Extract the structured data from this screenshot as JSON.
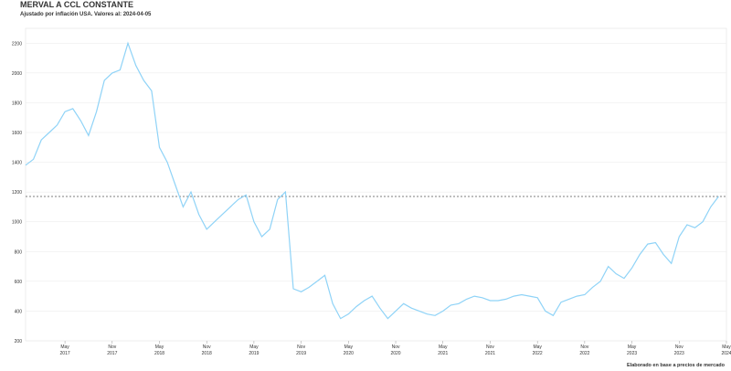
{
  "chart_data": {
    "type": "line",
    "title": "MERVAL A CCL CONSTANTE",
    "subtitle": "Ajustado por inflación USA. Valores al: 2024-04-05",
    "annotation": "Elaborado en base a precios de mercado",
    "color": "#8fd3f7",
    "reference_line": 1170,
    "x": [
      "2016-12",
      "2017-01",
      "2017-02",
      "2017-03",
      "2017-04",
      "2017-05",
      "2017-06",
      "2017-07",
      "2017-08",
      "2017-09",
      "2017-10",
      "2017-11",
      "2017-12",
      "2018-01",
      "2018-02",
      "2018-03",
      "2018-04",
      "2018-05",
      "2018-06",
      "2018-07",
      "2018-08",
      "2018-09",
      "2018-10",
      "2018-11",
      "2018-12",
      "2019-01",
      "2019-02",
      "2019-03",
      "2019-04",
      "2019-05",
      "2019-06",
      "2019-07",
      "2019-08",
      "2019-09",
      "2019-10",
      "2019-11",
      "2019-12",
      "2020-01",
      "2020-02",
      "2020-03",
      "2020-04",
      "2020-05",
      "2020-06",
      "2020-07",
      "2020-08",
      "2020-09",
      "2020-10",
      "2020-11",
      "2020-12",
      "2021-01",
      "2021-02",
      "2021-03",
      "2021-04",
      "2021-05",
      "2021-06",
      "2021-07",
      "2021-08",
      "2021-09",
      "2021-10",
      "2021-11",
      "2021-12",
      "2022-01",
      "2022-02",
      "2022-03",
      "2022-04",
      "2022-05",
      "2022-06",
      "2022-07",
      "2022-08",
      "2022-09",
      "2022-10",
      "2022-11",
      "2022-12",
      "2023-01",
      "2023-02",
      "2023-03",
      "2023-04",
      "2023-05",
      "2023-06",
      "2023-07",
      "2023-08",
      "2023-09",
      "2023-10",
      "2023-11",
      "2023-12",
      "2024-01",
      "2024-02",
      "2024-03",
      "2024-04"
    ],
    "values": [
      1380,
      1420,
      1550,
      1600,
      1650,
      1740,
      1760,
      1680,
      1580,
      1740,
      1950,
      2000,
      2020,
      2200,
      2050,
      1950,
      1880,
      1500,
      1400,
      1250,
      1100,
      1200,
      1050,
      950,
      1000,
      1050,
      1100,
      1150,
      1180,
      1000,
      900,
      950,
      1150,
      1200,
      550,
      530,
      560,
      600,
      640,
      450,
      350,
      380,
      430,
      470,
      500,
      420,
      350,
      400,
      450,
      420,
      400,
      380,
      370,
      400,
      440,
      450,
      480,
      500,
      490,
      470,
      470,
      480,
      500,
      510,
      500,
      490,
      400,
      370,
      460,
      480,
      500,
      510,
      560,
      600,
      700,
      650,
      620,
      690,
      780,
      850,
      860,
      780,
      720,
      900,
      980,
      960,
      1000,
      1100,
      1170
    ],
    "xlim": [
      "2016-12",
      "2024-05"
    ],
    "xticks": [
      {
        "value": "2017-05",
        "label": "May 2017"
      },
      {
        "value": "2017-11",
        "label": "Nov 2017"
      },
      {
        "value": "2018-05",
        "label": "May 2018"
      },
      {
        "value": "2018-11",
        "label": "Nov 2018"
      },
      {
        "value": "2019-05",
        "label": "May 2019"
      },
      {
        "value": "2019-11",
        "label": "Nov 2019"
      },
      {
        "value": "2020-05",
        "label": "May 2020"
      },
      {
        "value": "2020-11",
        "label": "Nov 2020"
      },
      {
        "value": "2021-05",
        "label": "May 2021"
      },
      {
        "value": "2021-11",
        "label": "Nov 2021"
      },
      {
        "value": "2022-05",
        "label": "May 2022"
      },
      {
        "value": "2022-11",
        "label": "Nov 2022"
      },
      {
        "value": "2023-05",
        "label": "May 2023"
      },
      {
        "value": "2023-11",
        "label": "Nov 2023"
      },
      {
        "value": "2024-05",
        "label": "May 2024"
      }
    ],
    "ylim": [
      200,
      2300
    ],
    "yticks": [
      200,
      400,
      600,
      800,
      1000,
      1200,
      1400,
      1600,
      1800,
      2000,
      2200
    ],
    "grid": true
  }
}
